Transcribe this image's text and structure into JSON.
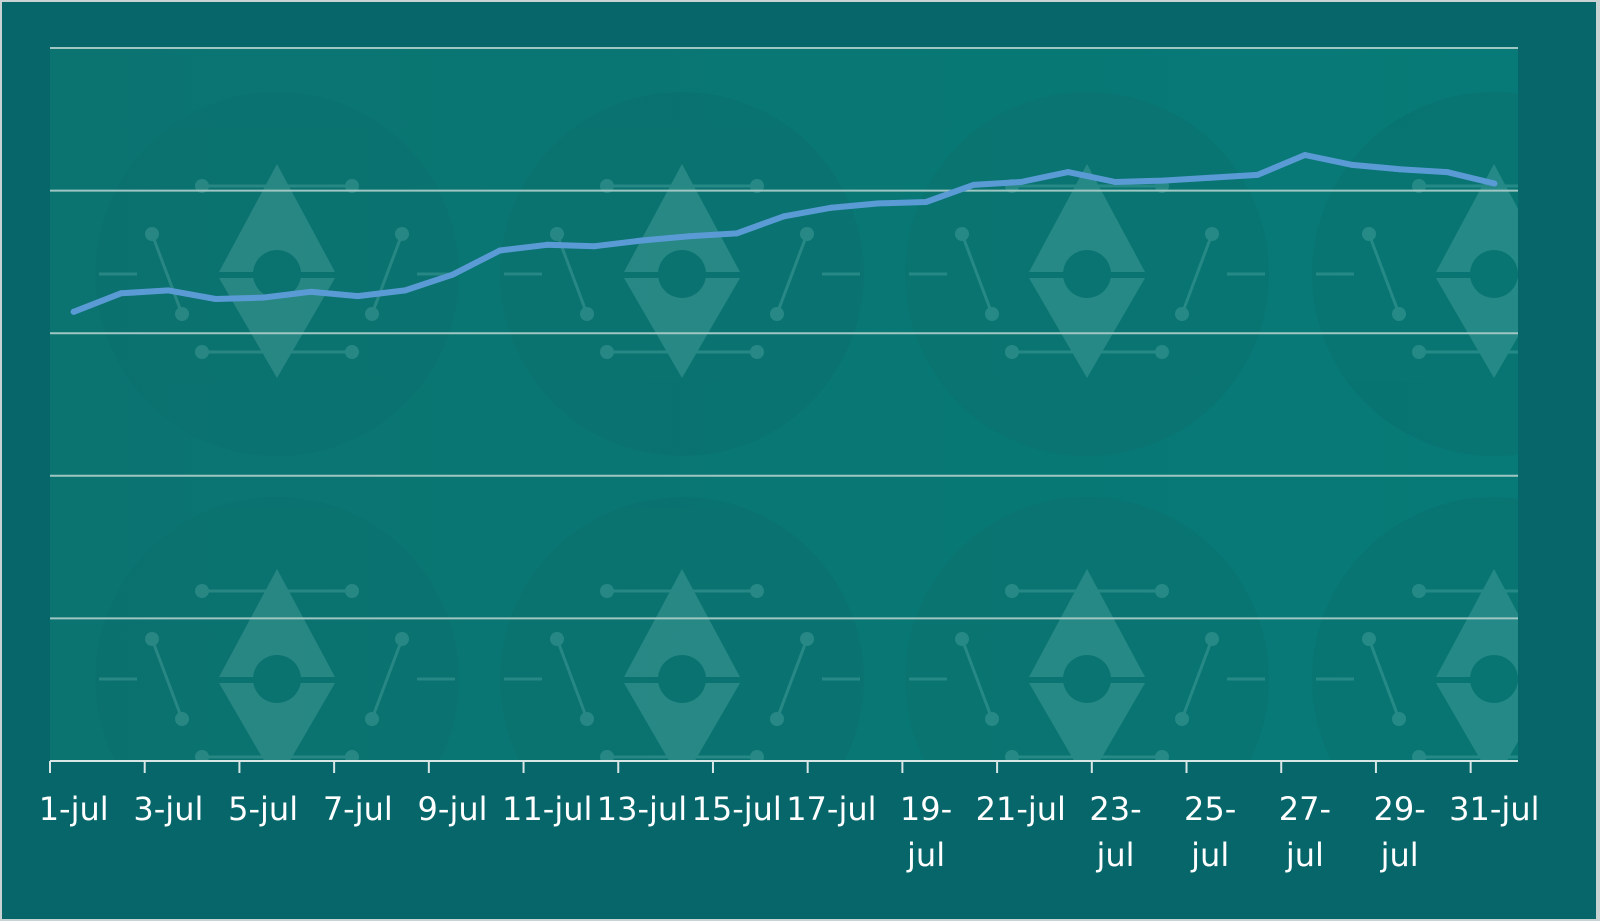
{
  "chart_data": {
    "type": "line",
    "title": "",
    "xlabel": "",
    "ylabel": "",
    "x": [
      "1-jul",
      "2-jul",
      "3-jul",
      "4-jul",
      "5-jul",
      "6-jul",
      "7-jul",
      "8-jul",
      "9-jul",
      "10-jul",
      "11-jul",
      "12-jul",
      "13-jul",
      "14-jul",
      "15-jul",
      "16-jul",
      "17-jul",
      "18-jul",
      "19-jul",
      "20-jul",
      "21-jul",
      "22-jul",
      "23-jul",
      "24-jul",
      "25-jul",
      "26-jul",
      "27-jul",
      "28-jul",
      "29-jul",
      "30-jul",
      "31-jul"
    ],
    "tick_labels": [
      {
        "x": "1-jul",
        "lines": [
          "1-jul"
        ]
      },
      {
        "x": "3-jul",
        "lines": [
          "3-jul"
        ]
      },
      {
        "x": "5-jul",
        "lines": [
          "5-jul"
        ]
      },
      {
        "x": "7-jul",
        "lines": [
          "7-jul"
        ]
      },
      {
        "x": "9-jul",
        "lines": [
          "9-jul"
        ]
      },
      {
        "x": "11-jul",
        "lines": [
          "11-jul"
        ]
      },
      {
        "x": "13-jul",
        "lines": [
          "13-jul"
        ]
      },
      {
        "x": "15-jul",
        "lines": [
          "15-jul"
        ]
      },
      {
        "x": "17-jul",
        "lines": [
          "17-jul"
        ]
      },
      {
        "x": "19-jul",
        "lines": [
          "19-",
          "jul"
        ]
      },
      {
        "x": "21-jul",
        "lines": [
          "21-jul"
        ]
      },
      {
        "x": "23-jul",
        "lines": [
          "23-",
          "jul"
        ]
      },
      {
        "x": "25-jul",
        "lines": [
          "25-",
          "jul"
        ]
      },
      {
        "x": "27-jul",
        "lines": [
          "27-",
          "jul"
        ]
      },
      {
        "x": "29-jul",
        "lines": [
          "29-",
          "jul"
        ]
      },
      {
        "x": "31-jul",
        "lines": [
          "31-jul"
        ]
      }
    ],
    "series": [
      {
        "color": "#5b9bd5",
        "values": [
          3.15,
          3.28,
          3.3,
          3.24,
          3.25,
          3.29,
          3.26,
          3.3,
          3.41,
          3.58,
          3.62,
          3.61,
          3.65,
          3.68,
          3.7,
          3.82,
          3.88,
          3.91,
          3.92,
          4.04,
          4.06,
          4.13,
          4.06,
          4.07,
          4.09,
          4.11,
          4.25,
          4.18,
          4.15,
          4.13,
          4.05
        ]
      }
    ],
    "ylim": [
      0,
      5
    ],
    "grid": true,
    "legend": "none",
    "colors": {
      "frame": "#06666a",
      "plot": "#0a7a7a",
      "grid": "#9fc6c2",
      "axis": "#d8e6e6",
      "text": "#ffffff",
      "watermark": "#5fa9a5"
    }
  }
}
